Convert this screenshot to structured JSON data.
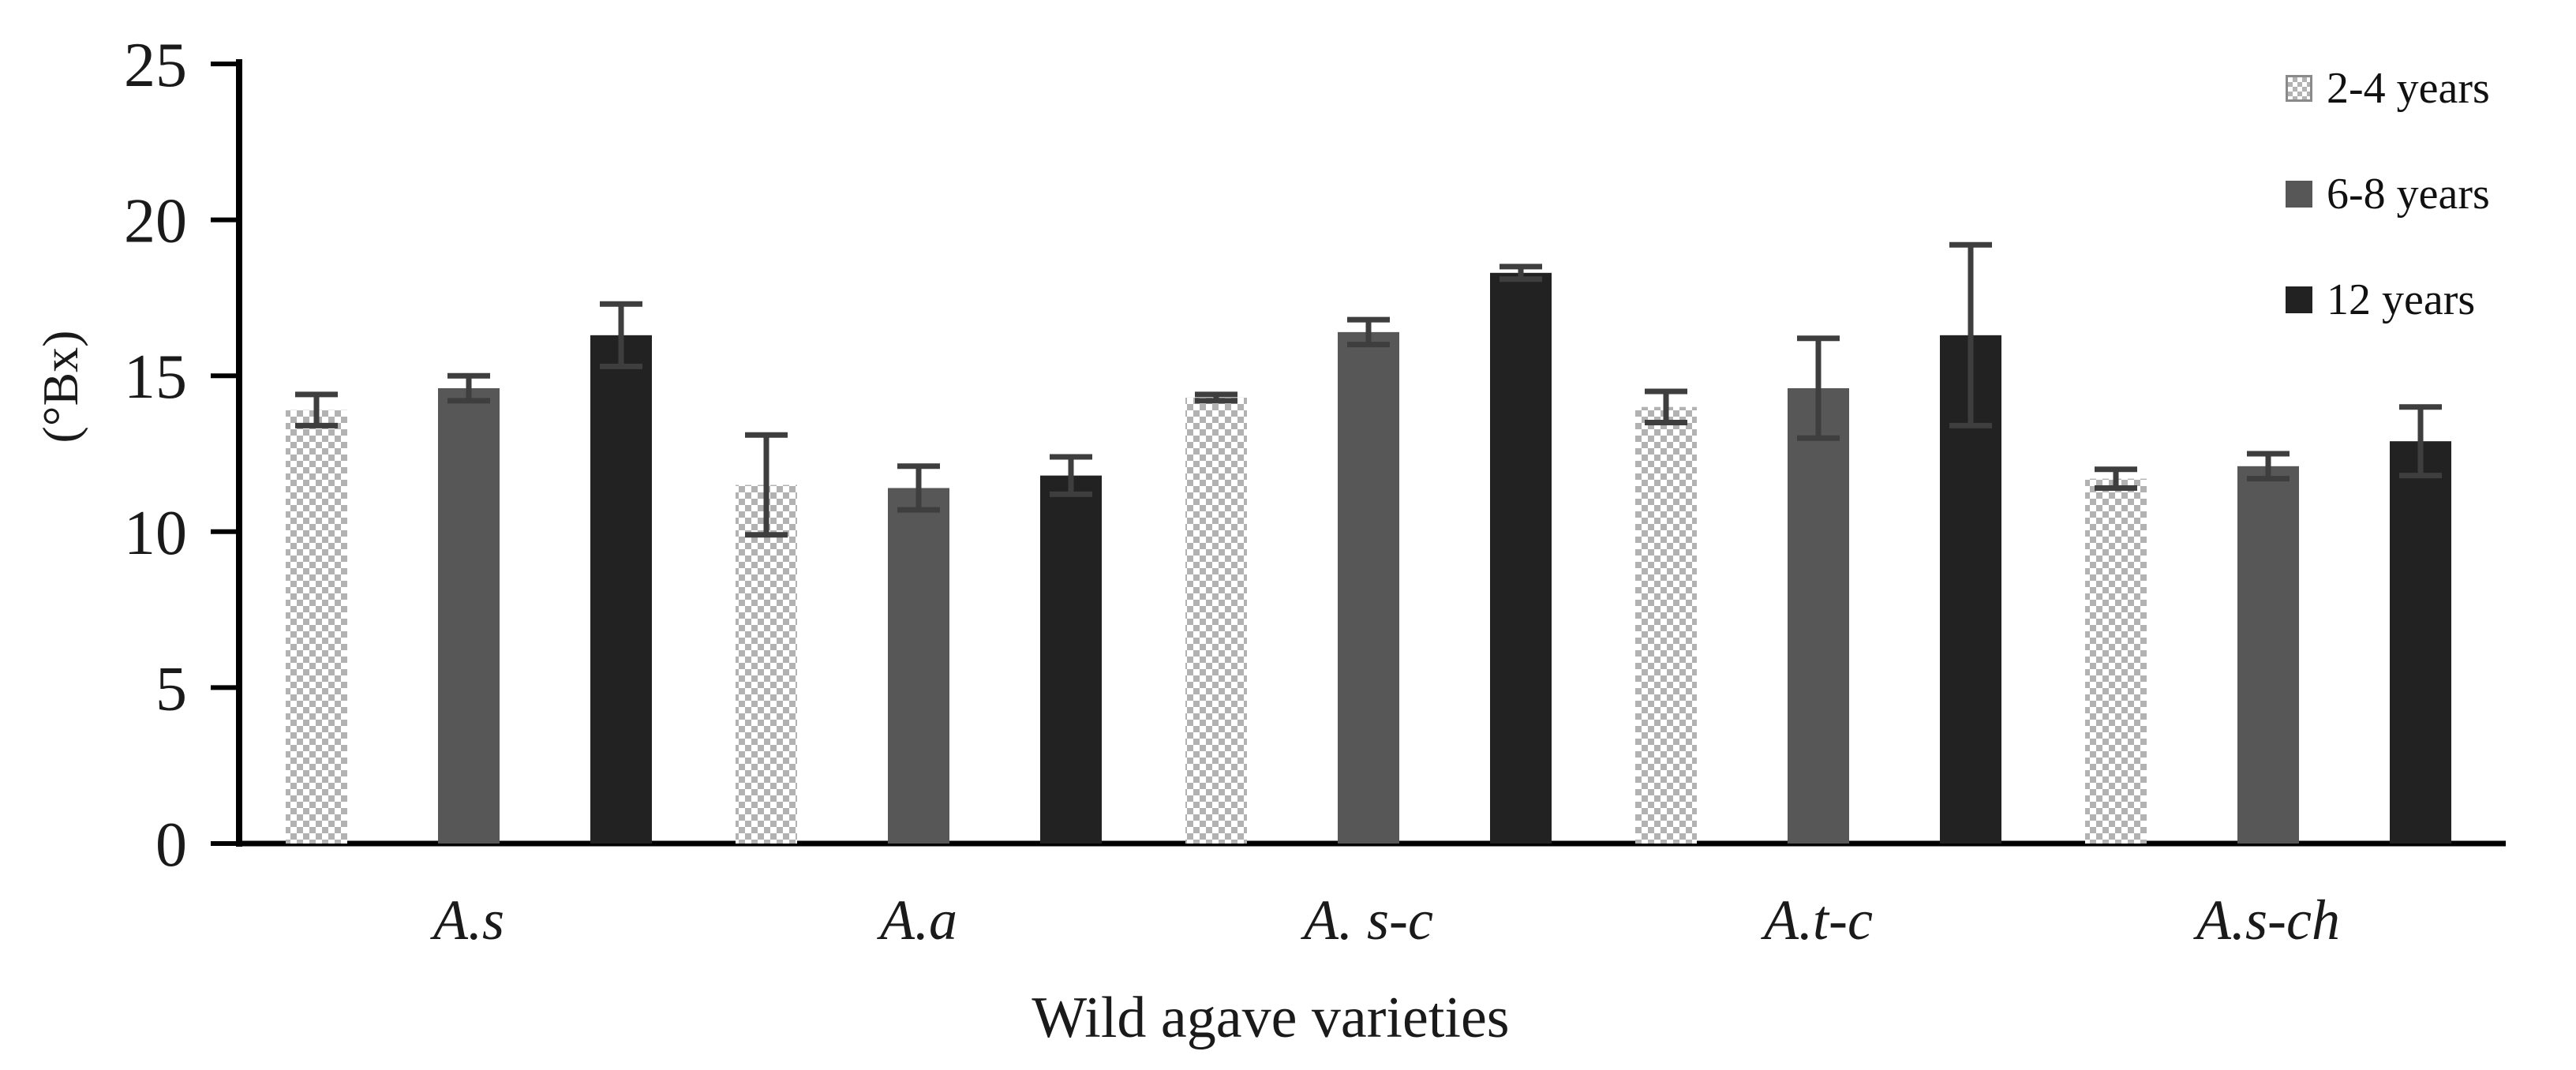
{
  "figure": {
    "background": "#ffffff",
    "text_color": "#1a1a1a"
  },
  "chart_data": {
    "type": "bar",
    "title": "",
    "xlabel": "Wild agave varieties",
    "ylabel": "(°Bx)",
    "ylim": [
      0,
      25
    ],
    "ytick_step": 5,
    "yticks": [
      0,
      5,
      10,
      15,
      20,
      25
    ],
    "grid": false,
    "legend_position": "top-right",
    "error_bars": true,
    "error_bar_color": "#3e3e3e",
    "axis_color": "#000000",
    "categories": [
      "A.s",
      "A.a",
      "A. s-c",
      "A.t-c",
      "A.s-ch"
    ],
    "series": [
      {
        "name": "2-4 years",
        "style": "checker",
        "color": "#b2b2b2",
        "values": [
          13.9,
          11.5,
          14.3,
          14.0,
          11.7
        ],
        "errors": [
          0.5,
          1.6,
          0.1,
          0.5,
          0.3
        ]
      },
      {
        "name": "6-8 years",
        "style": "solid",
        "color": "#575757",
        "values": [
          14.6,
          11.4,
          16.4,
          14.6,
          12.1
        ],
        "errors": [
          0.4,
          0.7,
          0.4,
          1.6,
          0.4
        ]
      },
      {
        "name": "12 years",
        "style": "solid",
        "color": "#222222",
        "values": [
          16.3,
          11.8,
          18.3,
          16.3,
          12.9
        ],
        "errors": [
          1.0,
          0.6,
          0.2,
          2.9,
          1.1
        ]
      }
    ]
  }
}
